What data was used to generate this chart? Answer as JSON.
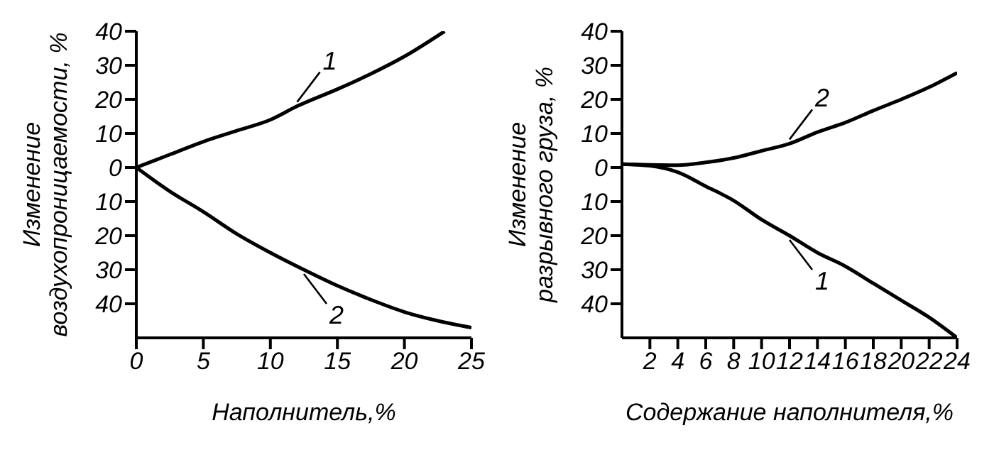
{
  "chart_data": [
    {
      "type": "line",
      "xlabel": "Наполнитель,%",
      "ylabel": "Изменение воздухопроницаемости, %",
      "x": [
        0,
        2.5,
        5,
        7.5,
        10,
        12,
        15,
        17.5,
        20,
        23
      ],
      "xlim": [
        0,
        25
      ],
      "xticks": [
        0,
        5,
        10,
        15,
        20,
        25
      ],
      "ylim": [
        -50,
        40
      ],
      "yticks": [
        {
          "value": -40,
          "label": "40"
        },
        {
          "value": -30,
          "label": "30"
        },
        {
          "value": -20,
          "label": "20"
        },
        {
          "value": -10,
          "label": "10"
        },
        0,
        10,
        20,
        30,
        40
      ],
      "grid": false,
      "marker": "none",
      "line_style": "solid",
      "series": [
        {
          "name": "1",
          "color": "#000000",
          "values": [
            0,
            3.8,
            7.6,
            10.8,
            14,
            18,
            23,
            27.5,
            32.6,
            40
          ]
        },
        {
          "name": "2",
          "color": "#000000",
          "x": [
            0,
            2.5,
            5,
            7.5,
            10,
            12.5,
            15,
            17.5,
            20,
            22.5,
            25
          ],
          "values": [
            0,
            -7,
            -13,
            -19.5,
            -25,
            -30,
            -34.7,
            -38.8,
            -42.4,
            -45,
            -47
          ]
        }
      ]
    },
    {
      "type": "line",
      "xlabel": "Содержание наполнителя,%",
      "ylabel": "Изменение разрывного груза, %",
      "x": [
        0,
        2,
        4,
        6,
        8,
        10,
        12,
        14,
        16,
        18,
        20,
        22,
        24
      ],
      "xlim": [
        0,
        24
      ],
      "xticks": [
        2,
        4,
        6,
        8,
        10,
        12,
        14,
        16,
        18,
        20,
        22,
        24
      ],
      "ylim": [
        -50,
        40
      ],
      "yticks": [
        {
          "value": -40,
          "label": "40"
        },
        {
          "value": -30,
          "label": "30"
        },
        {
          "value": -20,
          "label": "20"
        },
        {
          "value": -10,
          "label": "10"
        },
        0,
        10,
        20,
        30,
        40
      ],
      "grid": false,
      "marker": "none",
      "line_style": "solid",
      "series": [
        {
          "name": "2",
          "color": "#000000",
          "values": [
            1,
            0.8,
            0.7,
            1.5,
            2.8,
            4.9,
            7,
            10.4,
            13.2,
            16.7,
            20,
            23.6,
            27.8
          ]
        },
        {
          "name": "1",
          "color": "#000000",
          "values": [
            1,
            0.5,
            -1.4,
            -5.5,
            -9.7,
            -15.3,
            -20,
            -25,
            -29,
            -34,
            -39,
            -44,
            -50
          ]
        }
      ]
    }
  ]
}
